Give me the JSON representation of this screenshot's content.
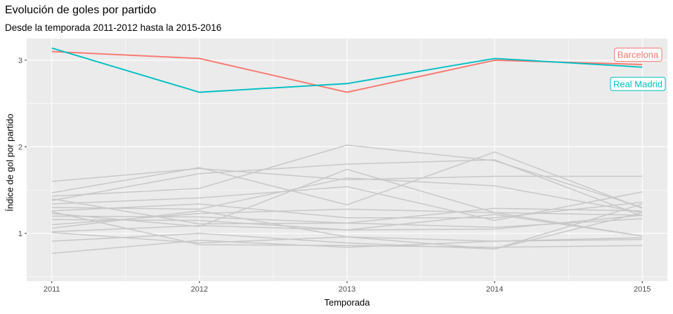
{
  "chart_data": {
    "type": "line",
    "title": "Evolución de goles por partido",
    "subtitle": "Desde la temporada 2011-2012 hasta la 2015-2016",
    "xlabel": "Temporada",
    "ylabel": "Índice de gol por partido",
    "x": [
      2011,
      2012,
      2013,
      2014,
      2015
    ],
    "xlim": [
      2010.83,
      2015.17
    ],
    "ylim": [
      0.45,
      3.25
    ],
    "yticks": [
      1,
      2,
      3
    ],
    "grid": true,
    "legend": "none",
    "highlight_color_barcelona": "#F8766D",
    "highlight_color_madrid": "#00BFC4",
    "background_color": "#EBEBEB",
    "others_color": "#C8C8C8",
    "series": [
      {
        "name": "Barcelona",
        "color": "#F8766D",
        "values": [
          3.1,
          3.02,
          2.63,
          3.0,
          2.95
        ]
      },
      {
        "name": "Real Madrid",
        "color": "#00BFC4",
        "values": [
          3.14,
          2.63,
          2.73,
          3.02,
          2.92
        ]
      },
      {
        "values": [
          1.6,
          1.75,
          1.62,
          1.66,
          1.66
        ]
      },
      {
        "values": [
          1.47,
          1.76,
          1.33,
          1.94,
          1.29
        ]
      },
      {
        "values": [
          1.43,
          1.52,
          2.02,
          1.84,
          1.3
        ]
      },
      {
        "values": [
          1.38,
          1.69,
          1.8,
          1.85,
          1.2
        ]
      },
      {
        "values": [
          1.34,
          1.41,
          1.54,
          1.15,
          1.48
        ]
      },
      {
        "values": [
          1.3,
          1.28,
          1.64,
          1.55,
          1.24
        ]
      },
      {
        "values": [
          1.26,
          1.34,
          1.18,
          1.18,
          1.36
        ]
      },
      {
        "values": [
          1.23,
          1.08,
          1.74,
          1.24,
          1.21
        ]
      },
      {
        "values": [
          1.4,
          1.11,
          1.12,
          1.07,
          1.17
        ]
      },
      {
        "values": [
          1.2,
          1.19,
          1.12,
          1.29,
          1.26
        ]
      },
      {
        "values": [
          1.16,
          1.15,
          1.04,
          1.22,
          0.97
        ]
      },
      {
        "values": [
          1.1,
          1.23,
          1.28,
          1.24,
          0.97
        ]
      },
      {
        "values": [
          1.06,
          1.26,
          0.96,
          0.91,
          0.95
        ]
      },
      {
        "values": [
          1.02,
          1.09,
          1.04,
          1.05,
          1.21
        ]
      },
      {
        "values": [
          1.01,
          0.89,
          0.96,
          0.82,
          1.34
        ]
      },
      {
        "values": [
          0.91,
          1.0,
          0.89,
          0.82,
          1.24
        ]
      },
      {
        "values": [
          0.77,
          0.92,
          0.84,
          0.91,
          0.93
        ]
      },
      {
        "values": [
          1.25,
          0.87,
          0.86,
          0.84,
          0.86
        ]
      }
    ]
  }
}
